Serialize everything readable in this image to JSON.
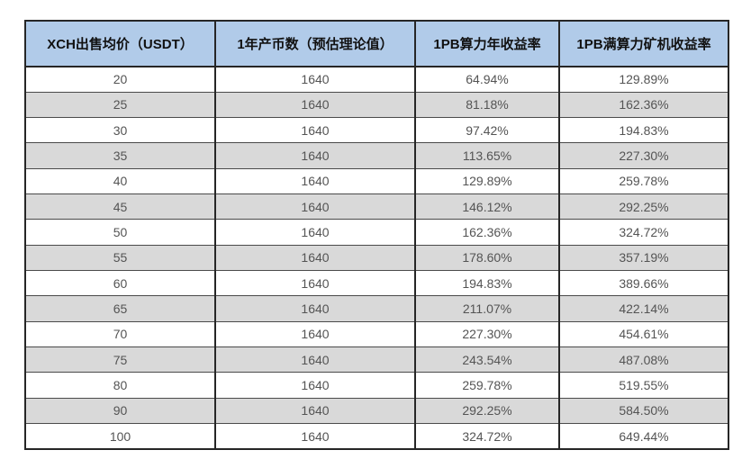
{
  "chart_data": {
    "type": "table",
    "title": "",
    "columns": [
      "XCH出售均价（USDT）",
      "1年产币数（预估理论值）",
      "1PB算力年收益率",
      "1PB满算力矿机收益率"
    ],
    "rows": [
      [
        "20",
        "1640",
        "64.94%",
        "129.89%"
      ],
      [
        "25",
        "1640",
        "81.18%",
        "162.36%"
      ],
      [
        "30",
        "1640",
        "97.42%",
        "194.83%"
      ],
      [
        "35",
        "1640",
        "113.65%",
        "227.30%"
      ],
      [
        "40",
        "1640",
        "129.89%",
        "259.78%"
      ],
      [
        "45",
        "1640",
        "146.12%",
        "292.25%"
      ],
      [
        "50",
        "1640",
        "162.36%",
        "324.72%"
      ],
      [
        "55",
        "1640",
        "178.60%",
        "357.19%"
      ],
      [
        "60",
        "1640",
        "194.83%",
        "389.66%"
      ],
      [
        "65",
        "1640",
        "211.07%",
        "422.14%"
      ],
      [
        "70",
        "1640",
        "227.30%",
        "454.61%"
      ],
      [
        "75",
        "1640",
        "243.54%",
        "487.08%"
      ],
      [
        "80",
        "1640",
        "259.78%",
        "519.55%"
      ],
      [
        "90",
        "1640",
        "292.25%",
        "584.50%"
      ],
      [
        "100",
        "1640",
        "324.72%",
        "649.44%"
      ]
    ]
  },
  "colors": {
    "header_bg": "#b1cbe9",
    "row_bg": "#ffffff",
    "row_alt_bg": "#d9d9d9",
    "border_strong": "#262626",
    "border_thin": "#4a4a4a",
    "header_text": "#111111",
    "cell_text": "#545454"
  }
}
